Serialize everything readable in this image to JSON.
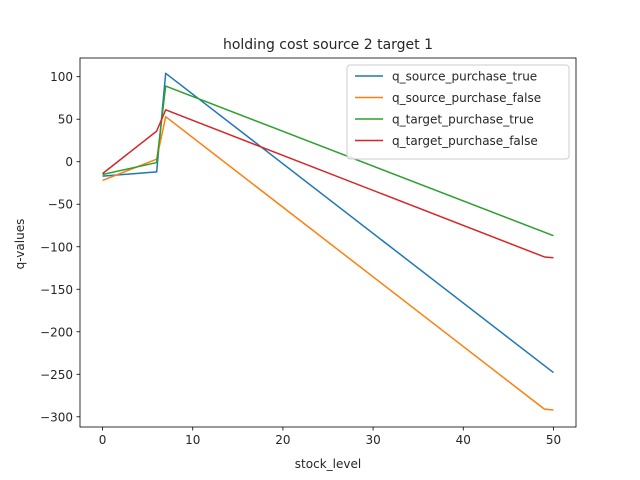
{
  "chart_data": {
    "type": "line",
    "title": "holding cost source 2 target 1",
    "xlabel": "stock_level",
    "ylabel": "q-values",
    "xlim": [
      -2.5,
      52.5
    ],
    "ylim": [
      -312,
      122
    ],
    "xticks": [
      0,
      10,
      20,
      30,
      40,
      50
    ],
    "xtick_labels": [
      "0",
      "10",
      "20",
      "30",
      "40",
      "50"
    ],
    "yticks": [
      100,
      50,
      0,
      -50,
      -100,
      -150,
      -200,
      -250,
      -300
    ],
    "ytick_labels": [
      "100",
      "50",
      "0",
      "−50",
      "−100",
      "−150",
      "−200",
      "−250",
      "−300"
    ],
    "grid": false,
    "legend_position": "top-right",
    "series": [
      {
        "name": "q_source_purchase_true",
        "color": "#1f77b4",
        "points": [
          [
            0,
            -17
          ],
          [
            6,
            -12
          ],
          [
            7,
            104
          ],
          [
            50,
            -248
          ]
        ]
      },
      {
        "name": "q_source_purchase_false",
        "color": "#ff7f0e",
        "points": [
          [
            0,
            -22
          ],
          [
            6,
            3
          ],
          [
            7,
            53
          ],
          [
            49,
            -291
          ],
          [
            50,
            -292
          ]
        ]
      },
      {
        "name": "q_target_purchase_true",
        "color": "#2ca02c",
        "points": [
          [
            0,
            -15
          ],
          [
            6,
            -1
          ],
          [
            7,
            89
          ],
          [
            50,
            -87
          ]
        ]
      },
      {
        "name": "q_target_purchase_false",
        "color": "#d62728",
        "points": [
          [
            0,
            -14
          ],
          [
            6,
            36
          ],
          [
            7,
            61
          ],
          [
            49,
            -112
          ],
          [
            50,
            -113
          ]
        ]
      }
    ]
  }
}
